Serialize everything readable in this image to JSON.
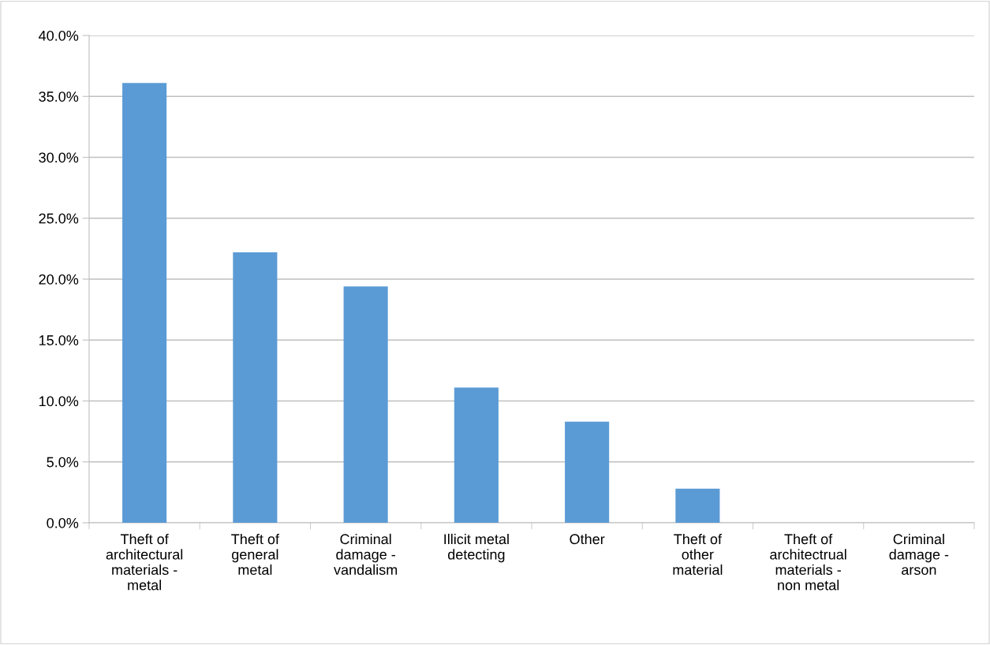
{
  "chart_data": {
    "type": "bar",
    "categories": [
      "Theft of\narchitectural\nmaterials -\nmetal",
      "Theft of\ngeneral\nmetal",
      "Criminal\ndamage -\nvandalism",
      "Illicit metal\ndetecting",
      "Other",
      "Theft of\nother\nmaterial",
      "Theft of\narchitectrual\nmaterials -\nnon metal",
      "Criminal\ndamage -\narson"
    ],
    "values": [
      36.1,
      22.2,
      19.4,
      11.1,
      8.3,
      2.8,
      0,
      0
    ],
    "color": "#5b9bd5",
    "ylim": [
      0,
      40
    ],
    "yticks": [
      {
        "value": 0,
        "label": "0.0%"
      },
      {
        "value": 5,
        "label": "5.0%"
      },
      {
        "value": 10,
        "label": "10.0%"
      },
      {
        "value": 15,
        "label": "15.0%"
      },
      {
        "value": 20,
        "label": "20.0%"
      },
      {
        "value": 25,
        "label": "25.0%"
      },
      {
        "value": 30,
        "label": "30.0%"
      },
      {
        "value": 35,
        "label": "35.0%"
      },
      {
        "value": 40,
        "label": "40.0%"
      }
    ],
    "grid": "y"
  }
}
